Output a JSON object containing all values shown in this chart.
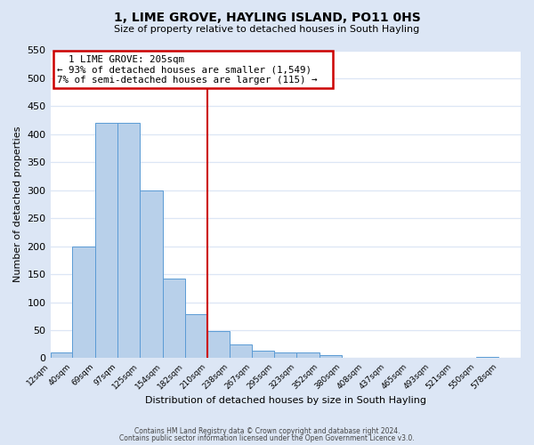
{
  "title": "1, LIME GROVE, HAYLING ISLAND, PO11 0HS",
  "subtitle": "Size of property relative to detached houses in South Hayling",
  "xlabel": "Distribution of detached houses by size in South Hayling",
  "ylabel": "Number of detached properties",
  "bar_labels": [
    "12sqm",
    "40sqm",
    "69sqm",
    "97sqm",
    "125sqm",
    "154sqm",
    "182sqm",
    "210sqm",
    "238sqm",
    "267sqm",
    "295sqm",
    "323sqm",
    "352sqm",
    "380sqm",
    "408sqm",
    "437sqm",
    "465sqm",
    "493sqm",
    "521sqm",
    "550sqm",
    "578sqm"
  ],
  "bar_values": [
    10,
    200,
    420,
    420,
    300,
    143,
    78,
    48,
    25,
    13,
    10,
    10,
    5,
    0,
    0,
    0,
    0,
    0,
    0,
    3,
    0
  ],
  "bar_color": "#b8d0ea",
  "bar_edge_color": "#5b9bd5",
  "figure_background_color": "#dce6f5",
  "axes_background_color": "#ffffff",
  "grid_color": "#dce6f5",
  "ylim": [
    0,
    550
  ],
  "property_line_x": 210,
  "annotation_title": "1 LIME GROVE: 205sqm",
  "annotation_line1": "← 93% of detached houses are smaller (1,549)",
  "annotation_line2": "7% of semi-detached houses are larger (115) →",
  "annotation_box_color": "#ffffff",
  "annotation_box_edge": "#cc0000",
  "vline_color": "#cc0000",
  "footer1": "Contains HM Land Registry data © Crown copyright and database right 2024.",
  "footer2": "Contains public sector information licensed under the Open Government Licence v3.0.",
  "bin_edges": [
    12,
    40,
    69,
    97,
    125,
    154,
    182,
    210,
    238,
    267,
    295,
    323,
    352,
    380,
    408,
    437,
    465,
    493,
    521,
    550,
    578,
    606
  ],
  "yticks": [
    0,
    50,
    100,
    150,
    200,
    250,
    300,
    350,
    400,
    450,
    500,
    550
  ]
}
